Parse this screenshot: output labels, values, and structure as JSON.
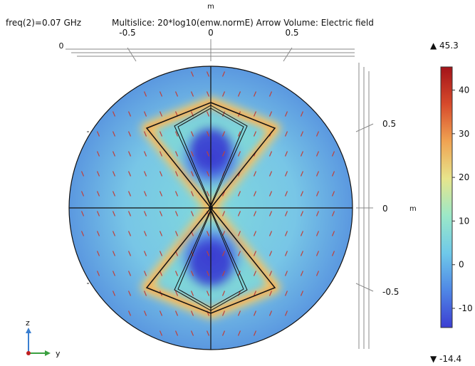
{
  "header": {
    "freq_label": "freq(2)=0.07 GHz",
    "plot_title": "Multislice: 20*log10(emw.normE)  Arrow Volume: Electric field"
  },
  "chart_data": {
    "type": "heatmap",
    "title": "Multislice: 20*log10(emw.normE)  Arrow Volume: Electric field",
    "parameter": "freq(2)=0.07 GHz",
    "expression": "20*log10(emw.normE)",
    "arrow_quantity": "Electric field",
    "y_axis": {
      "label": "m",
      "ticks": [
        "-0.5",
        "0",
        "0.5"
      ],
      "tick_values": [
        -0.5,
        0,
        0.5
      ]
    },
    "z_axis": {
      "label": "m",
      "ticks": [
        "0.5",
        "0",
        "-0.5"
      ],
      "tick_values": [
        0.5,
        0,
        -0.5
      ]
    },
    "depth_axis": {
      "label": "m",
      "ticks": [
        "0"
      ]
    },
    "domain": "circular air domain, radius 0.85 m, two triangular (bow-tie) conductor arms",
    "colorbar": {
      "max": 45.3,
      "min": -14.4,
      "max_label": "▲ 45.3",
      "min_label": "▼ -14.4",
      "ticks": [
        40,
        30,
        20,
        10,
        0,
        -10
      ],
      "tick_labels": [
        "40",
        "30",
        "20",
        "10",
        "0",
        "-10"
      ],
      "colormap": [
        "#3c3ed2",
        "#4f87e6",
        "#6fc9e9",
        "#9be8c8",
        "#e7e58c",
        "#f0a352",
        "#d74a2b",
        "#a3131a"
      ]
    },
    "field_levels": {
      "background": 8,
      "inner_bowtie_minimum": -13,
      "bowtie_edge_maximum": 28,
      "near_feed": 20
    },
    "orientation_axes": {
      "vertical": "z",
      "horizontal": "y"
    }
  }
}
